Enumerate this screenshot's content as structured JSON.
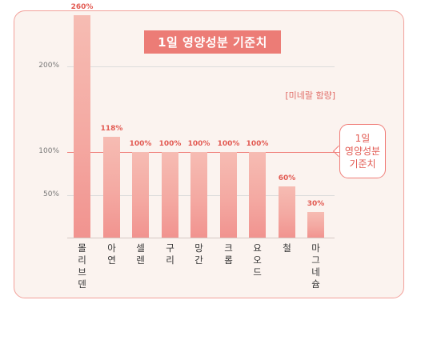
{
  "chart_data": {
    "type": "bar",
    "title": "1일 영양성분 기준치",
    "subtitle": "[미네랄 함량]",
    "categories": [
      "몰리브덴",
      "아연",
      "셀렌",
      "구리",
      "망간",
      "크롬",
      "요오드",
      "철",
      "마그네슘"
    ],
    "values": [
      260,
      118,
      100,
      100,
      100,
      100,
      100,
      60,
      30
    ],
    "value_labels": [
      "260%",
      "118%",
      "100%",
      "100%",
      "100%",
      "100%",
      "100%",
      "60%",
      "30%"
    ],
    "yticks": [
      {
        "value": 50,
        "label": "50%"
      },
      {
        "value": 100,
        "label": "100%"
      },
      {
        "value": 200,
        "label": "200%"
      }
    ],
    "reference": {
      "value": 100,
      "label": "1일 영양성분 기준치",
      "lines": [
        "1일",
        "영양성분",
        "기준치"
      ]
    },
    "ylim": [
      0,
      260
    ],
    "grid": true,
    "colors": {
      "bar_top": "#f6bcb3",
      "bar_bottom": "#f1938f",
      "accent": "#ec7c76",
      "value_text": "#e25a52",
      "card_bg": "#fbf3ef"
    }
  }
}
